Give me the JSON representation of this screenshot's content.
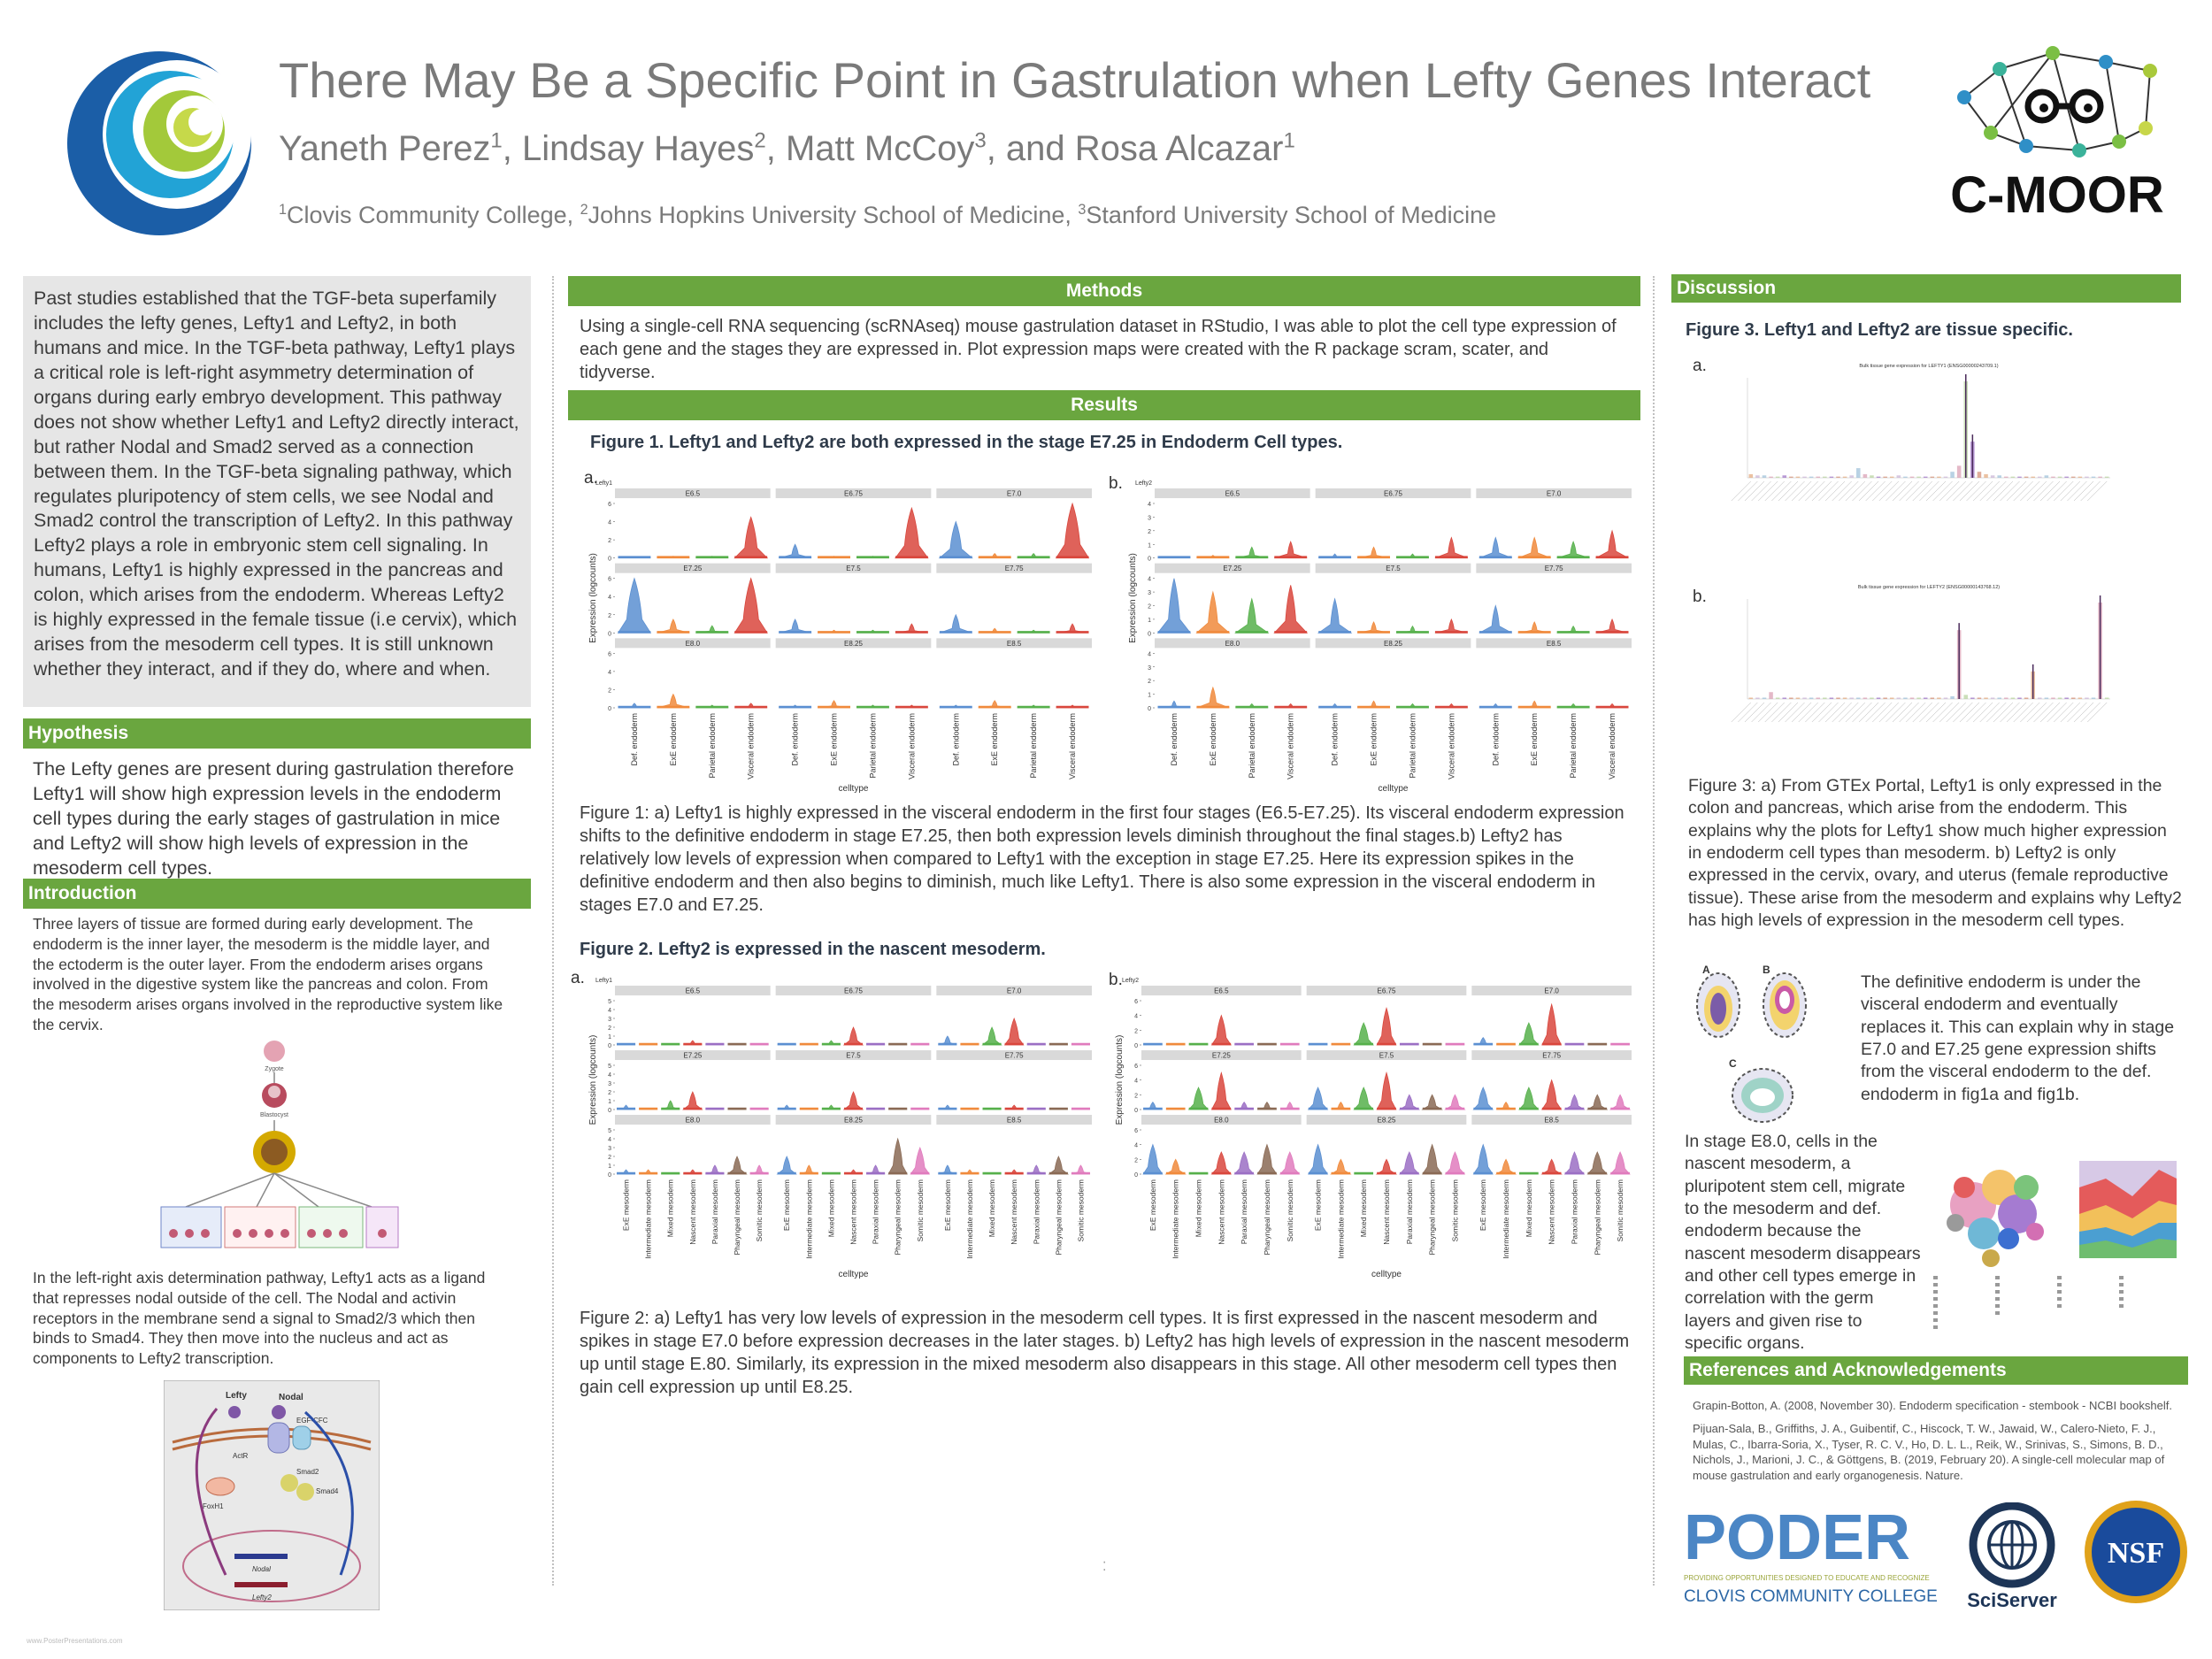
{
  "header": {
    "title": "There May Be a Specific Point in Gastrulation when Lefty Genes Interact",
    "authors": [
      {
        "name": "Yaneth Perez",
        "sup": "1",
        "sep": ", "
      },
      {
        "name": "Lindsay Hayes",
        "sup": "2",
        "sep": ", "
      },
      {
        "name": "Matt McCoy",
        "sup": "3",
        "sep": ", and "
      },
      {
        "name": "Rosa Alcazar",
        "sup": "1",
        "sep": ""
      }
    ],
    "affiliations": [
      {
        "sup": "1",
        "text": "Clovis Community College, "
      },
      {
        "sup": "2",
        "text": "Johns Hopkins University School of Medicine, "
      },
      {
        "sup": "3",
        "text": "Stanford University School of Medicine"
      }
    ],
    "logo_right_text": "C-MOOR"
  },
  "left": {
    "intro_paragraph": "Past studies established that the TGF-beta superfamily includes the lefty genes, Lefty1 and Lefty2, in both humans and mice. In the TGF-beta pathway, Lefty1 plays a critical  role is left-right asymmetry determination of organs during early embryo development. This pathway does not show whether Lefty1 and Lefty2 directly interact, but rather Nodal and Smad2 served as a connection between them. In the TGF-beta signaling pathway, which regulates pluripotency of stem cells, we see Nodal and Smad2 control the transcription of Lefty2. In this pathway Lefty2 plays a role in embryonic stem cell signaling. In humans, Lefty1 is highly expressed in the pancreas and colon, which arises from the endoderm. Whereas Lefty2 is highly expressed in the female tissue (i.e cervix), which arises from the mesoderm cell types. It is still unknown whether they interact, and if they do, where and when.",
    "hypothesis_title": "Hypothesis",
    "hypothesis_text": "The Lefty genes are present during gastrulation therefore Lefty1 will show high expression levels in the endoderm cell types during the early stages of gastrulation in mice and Lefty2 will show high levels of expression in the mesoderm cell types.",
    "introduction_title": "Introduction",
    "introduction_text": "Three layers of tissue are formed during early development. The endoderm is the inner layer, the mesoderm is the middle layer, and the ectoderm is the outer layer. From the endoderm arises organs involved in the digestive system like the pancreas and colon. From the mesoderm arises organs involved in the reproductive system like the cervix.",
    "pathway_text": "In the left-right axis determination pathway, Lefty1 acts as a ligand that represses nodal outside of the cell. The Nodal and activin receptors in the membrane send a signal to Smad2/3 which then binds to Smad4. They then move into the nucleus and act as components to Lefty2 transcription.",
    "diagram_labels": {
      "lefty": "Lefty",
      "nodal": "Nodal",
      "egf": "EGF-CFC",
      "actr": "ActR",
      "smad2": "Smad2",
      "smad4": "Smad4",
      "foxh1": "FoxH1",
      "nodal_gene": "Nodal",
      "lefty2_gene": "Lefty2"
    },
    "tree_labels": {
      "zygote": "Zygote",
      "blastocyst": "Blastocyst"
    }
  },
  "middle": {
    "methods_title": "Methods",
    "methods_text": "Using a single-cell RNA sequencing (scRNAseq) mouse gastrulation dataset in RStudio, I was able to plot the cell type expression of each gene and the stages they are expressed in. Plot expression maps were created with the R package  scram, scater, and tidyverse.",
    "results_title": "Results",
    "fig1_title": "Figure 1. Lefty1 and Lefty2 are both expressed in the stage E7.25 in Endoderm Cell types.",
    "fig1_caption": "Figure 1: a) Lefty1 is highly expressed in the visceral endoderm in the first four stages (E6.5-E7.25). Its visceral endoderm expression shifts to the definitive endoderm in stage E7.25, then both expression levels diminish throughout the final stages.b) Lefty2 has relatively low levels of expression when compared to Lefty1 with the exception in stage E7.25. Here its expression spikes in the definitive endoderm and then also begins to diminish, much like Lefty1. There is also some expression in the visceral endoderm in stages E7.0 and E7.25.",
    "fig2_title": "Figure 2. Lefty2 is expressed in the nascent mesoderm.",
    "fig2_caption": "Figure 2: a) Lefty1 has very low levels of expression in the mesoderm cell types. It is first expressed in the nascent mesoderm and spikes in stage E7.0 before expression decreases in the later stages. b) Lefty2 has high levels of expression in the nascent mesoderm up until stage E.80. Similarly, its expression in the mixed mesoderm also disappears in this stage. All other mesoderm cell types then gain cell expression up until E8.25.",
    "panel_a": "a.",
    "panel_b": "b.",
    "ylabel": "Expression (logcounts)",
    "xlabel": "celltype"
  },
  "right": {
    "discussion_title": "Discussion",
    "fig3_title": "Figure 3. Lefty1 and Lefty2 are tissue specific.",
    "fig3a_plot_title": "Bulk tissue gene expression for LEFTY1 (ENSG00000243709.1)",
    "fig3b_plot_title": "Bulk tissue gene expression for LEFTY2 (ENSG00000143768.12)",
    "fig3_caption": "Figure 3: a) From GTEx Portal, Lefty1 is only expressed in the colon and pancreas, which arise from the endoderm. This explains why the plots for Lefty1 show much higher expression in endoderm cell types than mesoderm. b) Lefty2 is only expressed in the cervix, ovary, and uterus (female reproductive tissue). These arise from the mesoderm and explains why Lefty2 has high levels of expression in the mesoderm cell types.",
    "def_endo_text": "The definitive endoderm is under the visceral endoderm and eventually replaces it. This can explain why in stage E7.0 and E7.25 gene expression shifts from the visceral endoderm to the def. endoderm in fig1a and fig1b.",
    "e80_text": "In stage E8.0, cells in the nascent mesoderm, a pluripotent stem cell, migrate to the mesoderm and def. endoderm because the nascent mesoderm disappears and other cell types emerge in correlation with the germ layers and given rise to specific organs.",
    "refs_title": "References and Acknowledgements",
    "ref1": "Grapin-Botton, A. (2008, November 30). Endoderm specification - stembook - NCBI bookshelf.",
    "ref2": "Pijuan-Sala, B., Griffiths, J. A., Guibentif, C., Hiscock, T. W., Jawaid, W., Calero-Nieto, F. J., Mulas, C., Ibarra-Soria, X., Tyser, R. C. V., Ho, D. L. L., Reik, W., Srinivas, S., Simons, B. D., Nichols, J., Marioni, J. C., & Göttgens, B. (2019, February 20). A single-cell molecular map of mouse gastrulation and early organogenesis. Nature.",
    "poder_text": "PODER",
    "poder_sub": "PROVIDING OPPORTUNITIES DESIGNED TO EDUCATE AND RECOGNIZE",
    "clovis_text": "CLOVIS COMMUNITY COLLEGE",
    "sciserver_text": "SciServer",
    "nsf_text": "NSF",
    "embryo_labels": [
      "A",
      "B",
      "C"
    ]
  },
  "footer": {
    "credit": "www.PosterPresentations.com"
  },
  "chart_data": [
    {
      "type": "violin",
      "title": "Lefty1",
      "ylabel": "Expression (logcounts)",
      "xlabel": "celltype",
      "categories": [
        "Def. endoderm",
        "ExE endoderm",
        "Parietal endoderm",
        "Visceral endoderm"
      ],
      "facets": [
        "E6.5",
        "E6.75",
        "E7.0",
        "E7.25",
        "E7.5",
        "E7.75",
        "E8.0",
        "E8.25",
        "E8.5"
      ],
      "yticks": [
        0,
        2,
        4,
        6
      ],
      "max_values": [
        [
          0,
          0.2,
          0.2,
          4.5
        ],
        [
          1.5,
          0.2,
          0.2,
          5.5
        ],
        [
          4,
          0.5,
          0.5,
          6
        ],
        [
          6,
          1.5,
          0.8,
          6
        ],
        [
          1.5,
          0.3,
          0.3,
          1
        ],
        [
          2,
          0.5,
          0.3,
          1
        ],
        [
          0.5,
          1.5,
          0.3,
          0.5
        ],
        [
          0.3,
          0.8,
          0.3,
          0.3
        ],
        [
          0.3,
          0.8,
          0.3,
          0.3
        ]
      ]
    },
    {
      "type": "violin",
      "title": "Lefty2",
      "ylabel": "Expression (logcounts)",
      "xlabel": "celltype",
      "categories": [
        "Def. endoderm",
        "ExE endoderm",
        "Parietal endoderm",
        "Visceral endoderm"
      ],
      "facets": [
        "E6.5",
        "E6.75",
        "E7.0",
        "E7.25",
        "E7.5",
        "E7.75",
        "E8.0",
        "E8.25",
        "E8.5"
      ],
      "yticks": [
        0,
        1,
        2,
        3,
        4
      ],
      "max_values": [
        [
          0,
          0.2,
          0.8,
          1.2
        ],
        [
          0.3,
          0.8,
          0.3,
          1.5
        ],
        [
          1.5,
          1.5,
          1.2,
          2
        ],
        [
          4,
          3,
          2.5,
          3.5
        ],
        [
          2.5,
          0.8,
          0.5,
          1
        ],
        [
          2,
          0.8,
          0.5,
          1
        ],
        [
          0.5,
          1.5,
          0.3,
          0.3
        ],
        [
          0.3,
          0.5,
          0.3,
          0.3
        ],
        [
          0.3,
          0.5,
          0.3,
          0.3
        ]
      ]
    },
    {
      "type": "violin",
      "title": "Lefty1",
      "ylabel": "Expression (logcounts)",
      "xlabel": "celltype",
      "categories": [
        "ExE mesoderm",
        "Intermediate mesoderm",
        "Mixed mesoderm",
        "Nascent mesoderm",
        "Paraxial mesoderm",
        "Pharyngeal mesoderm",
        "Somitic mesoderm"
      ],
      "facets": [
        "E6.5",
        "E6.75",
        "E7.0",
        "E7.25",
        "E7.5",
        "E7.75",
        "E8.0",
        "E8.25",
        "E8.5"
      ],
      "yticks": [
        0,
        1,
        2,
        3,
        4,
        5
      ],
      "max_values": [
        [
          0,
          0,
          0,
          0.5,
          0,
          0,
          0
        ],
        [
          0,
          0,
          0.5,
          2,
          0,
          0,
          0
        ],
        [
          1,
          0,
          2,
          3,
          0,
          0,
          0
        ],
        [
          0.5,
          0,
          1,
          2,
          0,
          0,
          0
        ],
        [
          0.5,
          0,
          0.5,
          2,
          0,
          0,
          0
        ],
        [
          0.5,
          0,
          0,
          0.5,
          0,
          0,
          0
        ],
        [
          0.5,
          0.5,
          0,
          0.5,
          1,
          2,
          1
        ],
        [
          2,
          1,
          0,
          0.5,
          1,
          4,
          3
        ],
        [
          1,
          0.5,
          0,
          0.5,
          1,
          2,
          1
        ]
      ]
    },
    {
      "type": "violin",
      "title": "Lefty2",
      "ylabel": "Expression (logcounts)",
      "xlabel": "celltype",
      "categories": [
        "ExE mesoderm",
        "Intermediate mesoderm",
        "Mixed mesoderm",
        "Nascent mesoderm",
        "Paraxial mesoderm",
        "Pharyngeal mesoderm",
        "Somitic mesoderm"
      ],
      "facets": [
        "E6.5",
        "E6.75",
        "E7.0",
        "E7.25",
        "E7.5",
        "E7.75",
        "E8.0",
        "E8.25",
        "E8.5"
      ],
      "yticks": [
        0,
        2,
        4,
        6
      ],
      "max_values": [
        [
          0,
          0,
          0,
          4,
          0,
          0,
          0
        ],
        [
          0,
          0,
          3,
          5,
          0,
          0,
          0
        ],
        [
          1,
          0,
          3,
          5.5,
          0,
          0,
          0
        ],
        [
          1,
          0,
          3,
          5,
          1,
          1,
          1
        ],
        [
          3,
          1,
          3,
          5,
          2,
          2,
          2
        ],
        [
          3,
          1,
          3,
          4,
          2,
          2,
          2
        ],
        [
          4,
          2,
          0,
          3,
          3,
          4,
          3
        ],
        [
          4,
          2,
          0,
          2,
          3,
          4,
          3
        ],
        [
          4,
          2,
          0,
          2,
          3,
          3,
          3
        ]
      ]
    },
    {
      "type": "bar",
      "title": "Bulk tissue gene expression for LEFTY1 (ENSG00000243709.1)",
      "note": "GTEx tissues; peaks at colon and pancreas",
      "values": [
        0.3,
        0.2,
        0.2,
        0.1,
        0.1,
        0.2,
        0.1,
        0.1,
        0.1,
        0.1,
        0.1,
        0.1,
        0.1,
        0.1,
        0.1,
        0.2,
        0.8,
        0.3,
        0.2,
        0.1,
        0.1,
        0.1,
        0.2,
        0.1,
        0.1,
        0.1,
        0.1,
        0.1,
        0.1,
        0.1,
        0.5,
        1,
        8,
        3,
        0.5,
        0.3,
        0.2,
        0.2,
        0.1,
        0.1,
        0.1,
        0.1,
        0.1,
        0.1,
        0.2,
        0.1,
        0.1,
        0.1,
        0.1,
        0.1,
        0.1,
        0.1,
        0.1,
        0.1
      ]
    },
    {
      "type": "bar",
      "title": "Bulk tissue gene expression for LEFTY2 (ENSG00000143768.12)",
      "note": "GTEx tissues; peaks at cervix, ovary, uterus",
      "values": [
        0.1,
        0.1,
        0.1,
        0.5,
        0.1,
        0.1,
        0.1,
        0.1,
        0.1,
        0.1,
        0.1,
        0.1,
        0.1,
        0.1,
        0.1,
        0.1,
        0.1,
        0.1,
        0.1,
        0.1,
        0.1,
        0.1,
        0.1,
        0.1,
        0.1,
        0.1,
        0.1,
        0.1,
        0.1,
        0.1,
        0.2,
        5,
        0.3,
        0.1,
        0.1,
        0.1,
        0.1,
        0.1,
        0.1,
        0.1,
        0.1,
        0.1,
        2,
        0.1,
        0.1,
        0.1,
        0.1,
        0.1,
        0.1,
        0.1,
        0.1,
        0.1,
        7,
        0.1
      ]
    }
  ]
}
